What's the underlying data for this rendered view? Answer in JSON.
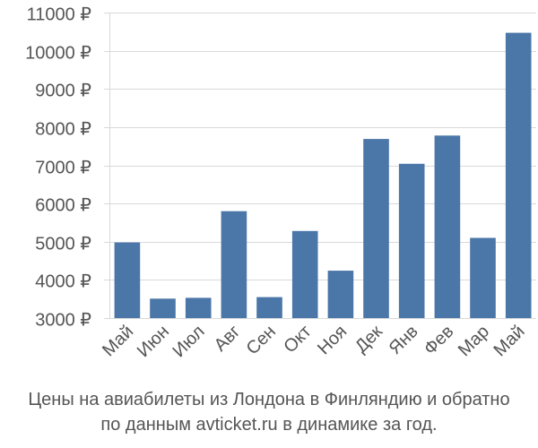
{
  "chart_data": {
    "type": "bar",
    "categories": [
      "Май",
      "Июн",
      "Июл",
      "Авг",
      "Сен",
      "Окт",
      "Ноя",
      "Дек",
      "Янв",
      "Фев",
      "Мар",
      "Май"
    ],
    "values": [
      4980,
      3510,
      3530,
      5800,
      3550,
      5280,
      4240,
      7690,
      7040,
      7780,
      5100,
      10470
    ],
    "ylim": [
      3000,
      11000
    ],
    "yticks": [
      3000,
      4000,
      5000,
      6000,
      7000,
      8000,
      9000,
      10000,
      11000
    ],
    "ytick_labels": [
      "3000 ₽",
      "4000 ₽",
      "5000 ₽",
      "6000 ₽",
      "7000 ₽",
      "8000 ₽",
      "9000 ₽",
      "10000 ₽",
      "11000 ₽"
    ],
    "grid": true,
    "bar_color": "#4a76a8"
  },
  "caption": {
    "line1": "Цены на авиабилеты из Лондона в Финляндию и обратно",
    "line2": "по данным avticket.ru в динамике за год."
  }
}
